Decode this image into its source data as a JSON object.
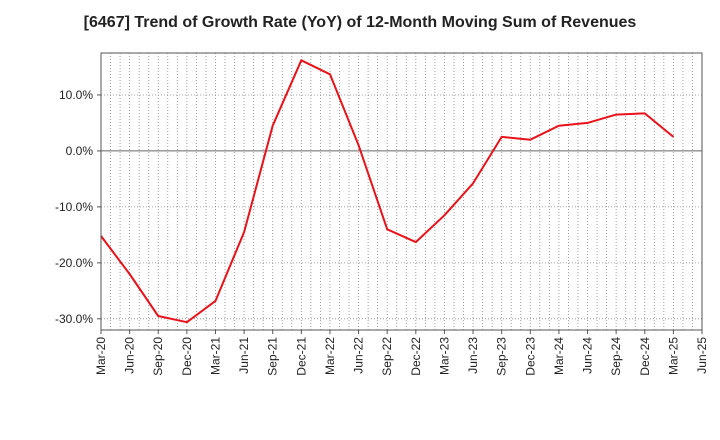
{
  "chart_data": {
    "type": "line",
    "title": "[6467]  Trend of Growth Rate (YoY) of 12-Month Moving Sum of Revenues",
    "xlabel": "",
    "ylabel": "",
    "x_ticks": [
      "Mar-20",
      "Jun-20",
      "Sep-20",
      "Dec-20",
      "Mar-21",
      "Jun-21",
      "Sep-21",
      "Dec-21",
      "Mar-22",
      "Jun-22",
      "Sep-22",
      "Dec-22",
      "Mar-23",
      "Jun-23",
      "Sep-23",
      "Dec-23",
      "Mar-24",
      "Jun-24",
      "Sep-24",
      "Dec-24",
      "Mar-25",
      "Jun-25"
    ],
    "y_ticks": [
      10,
      0,
      -10,
      -20,
      -30
    ],
    "y_tick_labels": [
      "10.0%",
      "0.0%",
      "-10.0%",
      "-20.0%",
      "-30.0%"
    ],
    "ylim": [
      -32,
      17.5
    ],
    "grid": true,
    "line_color": "#e8121a",
    "series": [
      {
        "x": [
          "Mar-20",
          "Jun-20",
          "Sep-20",
          "Dec-20",
          "Mar-21",
          "Jun-21",
          "Sep-21",
          "Dec-21",
          "Mar-22",
          "Jun-22",
          "Sep-22",
          "Dec-22",
          "Mar-23",
          "Jun-23",
          "Sep-23",
          "Dec-23",
          "Mar-24",
          "Jun-24",
          "Sep-24",
          "Dec-24",
          "Mar-25"
        ],
        "values": [
          -15.2,
          -22.0,
          -29.5,
          -30.6,
          -26.8,
          -14.5,
          4.5,
          16.2,
          13.7,
          1.0,
          -14.0,
          -16.3,
          -11.5,
          -5.8,
          2.5,
          2.0,
          4.5,
          5.0,
          6.5,
          6.7,
          2.5
        ]
      }
    ]
  }
}
